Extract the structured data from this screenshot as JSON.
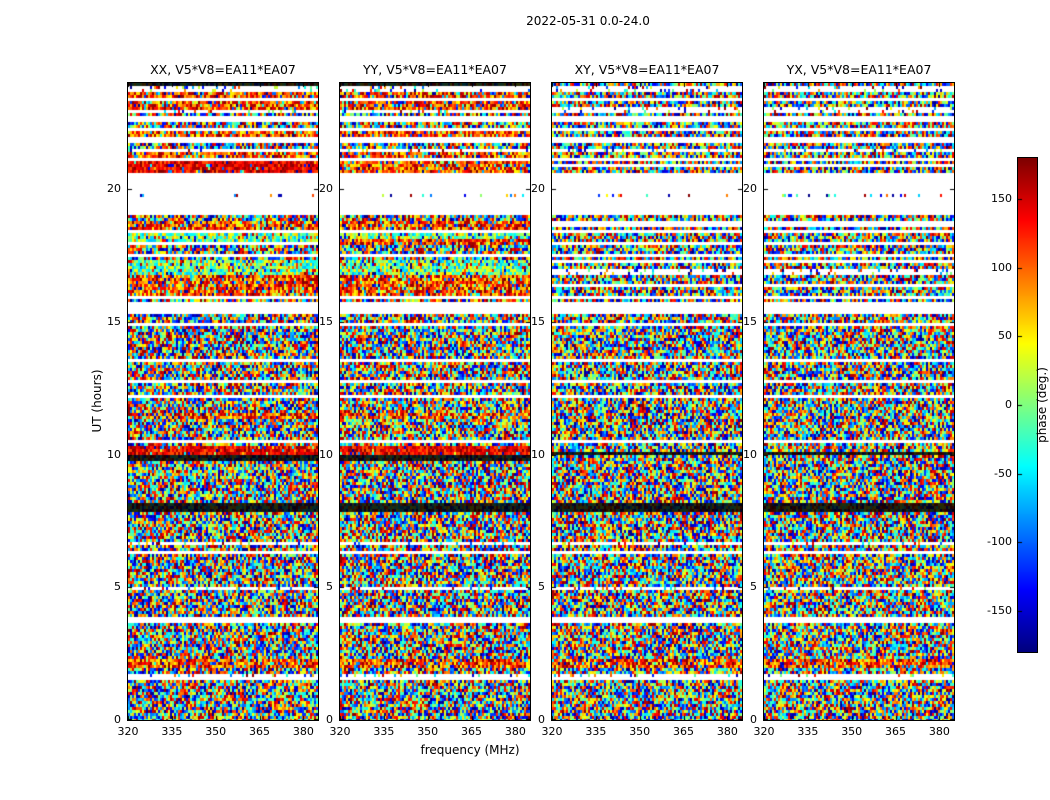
{
  "chart_data": {
    "type": "heatmap",
    "title": "2022-05-31 0.0-24.0",
    "description": "Interferometric visibility phase versus frequency and UT time for baseline V5*V8=EA11*EA07; four correlation products shown as random phase speckle with flagged (white) time ranges, saturated warm-phase bands and dark flagged rows.",
    "xlabel": "frequency (MHz)",
    "ylabel": "UT (hours)",
    "x_range": [
      320,
      385
    ],
    "x_ticks": [
      320,
      335,
      350,
      365,
      380
    ],
    "y_range": [
      0,
      24
    ],
    "y_ticks": [
      0,
      5,
      10,
      15,
      20
    ],
    "subplots": [
      {
        "correlation": "XX",
        "baseline": "V5*V8=EA11*EA07",
        "title": "XX, V5*V8=EA11*EA07"
      },
      {
        "correlation": "YY",
        "baseline": "V5*V8=EA11*EA07",
        "title": "YY, V5*V8=EA11*EA07"
      },
      {
        "correlation": "XY",
        "baseline": "V5*V8=EA11*EA07",
        "title": "XY, V5*V8=EA11*EA07"
      },
      {
        "correlation": "YX",
        "baseline": "V5*V8=EA11*EA07",
        "title": "YX, V5*V8=EA11*EA07"
      }
    ],
    "colorbar": {
      "label": "phase (deg.)",
      "colormap": "jet",
      "range": [
        -180,
        180
      ],
      "ticks": [
        150,
        100,
        50,
        0,
        -50,
        -100,
        -150
      ]
    },
    "noise": {
      "seed": 20220531,
      "white_row_prob": 0.05,
      "sparse_row_prob": 0.04,
      "dark_row_prob": 0.03,
      "dense_zone_ut": [
        0,
        15.25
      ],
      "stripe_zone_ut": [
        15.7,
        24.0
      ]
    },
    "features": [
      {
        "ut": [
          1.95,
          2.25
        ],
        "type": "warm",
        "panels": [
          "XX",
          "YY",
          "XY",
          "YX"
        ]
      },
      {
        "ut": [
          7.85,
          8.2
        ],
        "type": "dark",
        "panels": [
          "XX",
          "YY",
          "XY",
          "YX"
        ]
      },
      {
        "ut": [
          9.8,
          9.95
        ],
        "type": "dark",
        "panels": [
          "XX",
          "YY"
        ]
      },
      {
        "ut": [
          9.95,
          10.3
        ],
        "type": "red",
        "panels": [
          "XX",
          "YY"
        ]
      },
      {
        "ut": [
          9.95,
          10.1
        ],
        "type": "dark",
        "panels": [
          "XY",
          "YX"
        ]
      },
      {
        "ut": [
          11.35,
          11.6
        ],
        "type": "warm",
        "panels": [
          "XX",
          "YY"
        ]
      },
      {
        "ut": [
          15.25,
          15.7
        ],
        "type": "white",
        "panels": [
          "XX",
          "YY",
          "XY",
          "YX"
        ]
      },
      {
        "ut": [
          16.15,
          16.45
        ],
        "type": "warm",
        "panels": [
          "XX",
          "YY"
        ]
      },
      {
        "ut": [
          16.8,
          17.3
        ],
        "type": "cool",
        "panels": [
          "XX",
          "YY"
        ]
      },
      {
        "ut": [
          17.85,
          18.1
        ],
        "type": "warm",
        "panels": [
          "YY"
        ]
      },
      {
        "ut": [
          18.55,
          18.85
        ],
        "type": "warm",
        "panels": [
          "XX",
          "YY"
        ]
      },
      {
        "ut": [
          19.1,
          20.6
        ],
        "type": "white",
        "panels": [
          "XX",
          "YY",
          "XY",
          "YX"
        ]
      },
      {
        "ut": [
          19.75,
          19.87
        ],
        "type": "sparse",
        "panels": [
          "XX",
          "YY",
          "XY",
          "YX"
        ]
      },
      {
        "ut": [
          20.6,
          21.05
        ],
        "type": "red",
        "panels": [
          "XX"
        ]
      },
      {
        "ut": [
          20.6,
          21.05
        ],
        "type": "warm",
        "panels": [
          "YY"
        ]
      },
      {
        "ut": [
          23.0,
          23.3
        ],
        "type": "warm",
        "panels": [
          "XX",
          "YY"
        ]
      },
      {
        "ut": [
          23.88,
          24.0
        ],
        "type": "dark",
        "panels": [
          "XX",
          "YY"
        ]
      }
    ]
  }
}
